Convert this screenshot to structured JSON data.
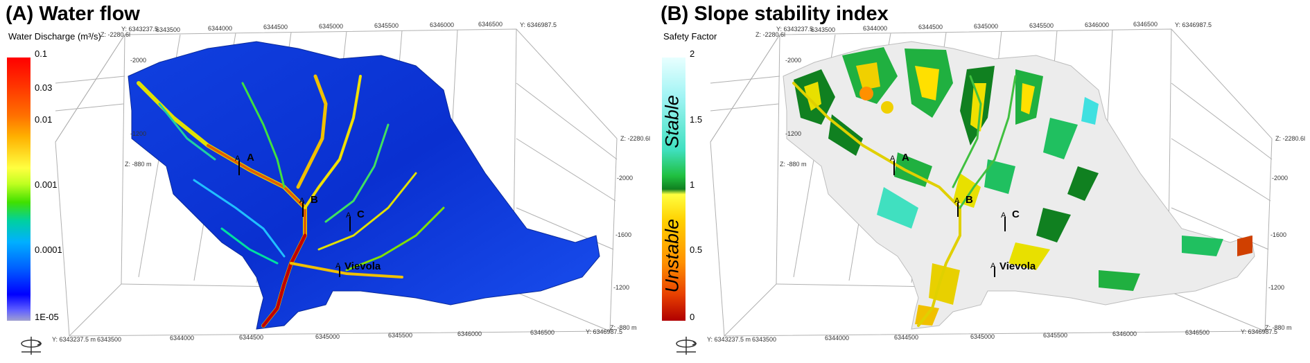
{
  "panelA": {
    "title": "(A) Water flow",
    "legend_title": "Water Discharge (m³/s)",
    "ticks": [
      "0.1",
      "0.03",
      "0.01",
      "0.001",
      "0.0001",
      "1E-05"
    ],
    "colors": [
      "#0000c8",
      "#0050ff",
      "#00b4ff",
      "#00e0a0",
      "#40d000",
      "#e0f000",
      "#ffc000",
      "#ff7000",
      "#e80000",
      "#b00000"
    ],
    "top_axis": [
      "Y: 6343237.5",
      "6343500",
      "6344000",
      "6344500",
      "6345000",
      "6345500",
      "6346000",
      "6346500",
      "Y: 6346987.5"
    ],
    "bottom_axis": [
      "Y: 6343237.5 m",
      "6343500",
      "6344000",
      "6344500",
      "6345000",
      "6345500",
      "6346000",
      "6346500",
      "Y: 6346987.5"
    ],
    "z_left": [
      "Z: -2280.6l",
      "-2000",
      "-1200",
      "Z: -880 m"
    ],
    "z_right": [
      "Z: -2280.6l",
      "-2000",
      "-1600",
      "-1200",
      "Z: -880 m"
    ],
    "points": {
      "A": "A",
      "B": "B",
      "C": "C",
      "Vievola": "Vievola"
    }
  },
  "panelB": {
    "title": "(B) Slope stability index",
    "legend_title": "Safety Factor",
    "ticks": [
      "2",
      "1.5",
      "1",
      "0.5",
      "0"
    ],
    "stable_label": "Stable",
    "unstable_label": "Unstable",
    "colors": [
      "#c00000",
      "#e84000",
      "#ff9000",
      "#ffd000",
      "#ffff40",
      "#108020",
      "#20c040",
      "#40e0c0",
      "#a0f0f0",
      "#e8ffff"
    ],
    "top_axis": [
      "Y: 6343237.5",
      "6343500",
      "6344000",
      "6344500",
      "6345000",
      "6345500",
      "6346000",
      "6346500",
      "Y: 6346987.5"
    ],
    "bottom_axis": [
      "Y: 6343237.5 m",
      "6343500",
      "6344000",
      "6344500",
      "6345000",
      "6345500",
      "6346000",
      "6346500",
      "Y: 6346987.5"
    ],
    "z_left": [
      "Z: -2280.6l",
      "-2000",
      "-1200",
      "Z: -880 m"
    ],
    "z_right": [
      "Z: -2280.6l",
      "-2000",
      "-1600",
      "-1200",
      "Z: -880 m"
    ],
    "points": {
      "A": "A",
      "B": "B",
      "C": "C",
      "Vievola": "Vievola"
    }
  }
}
